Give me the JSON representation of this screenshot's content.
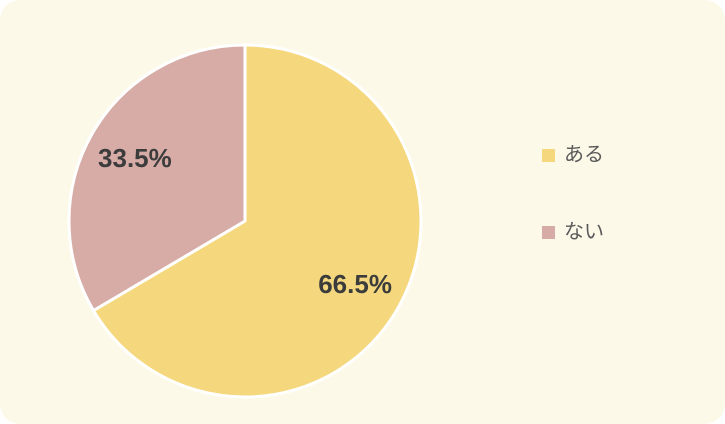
{
  "card": {
    "background_color": "#fcf9e8",
    "page_background_color": "#ffffff"
  },
  "chart_data": {
    "type": "pie",
    "title": "",
    "categories": [
      "ある",
      "ない"
    ],
    "values": [
      66.5,
      33.5
    ],
    "slices": [
      {
        "label": "ある",
        "value": 66.5,
        "display_label": "66.5%",
        "color": "#f5d87d"
      },
      {
        "label": "ない",
        "value": 33.5,
        "display_label": "33.5%",
        "color": "#d7aca7"
      }
    ],
    "start_angle_deg": 0,
    "direction": "clockwise",
    "slice_border_color": "#ffffff",
    "slice_label_color": "#3c3c3c",
    "legend_position": "right",
    "legend_text_color": "#5a5a5a"
  }
}
